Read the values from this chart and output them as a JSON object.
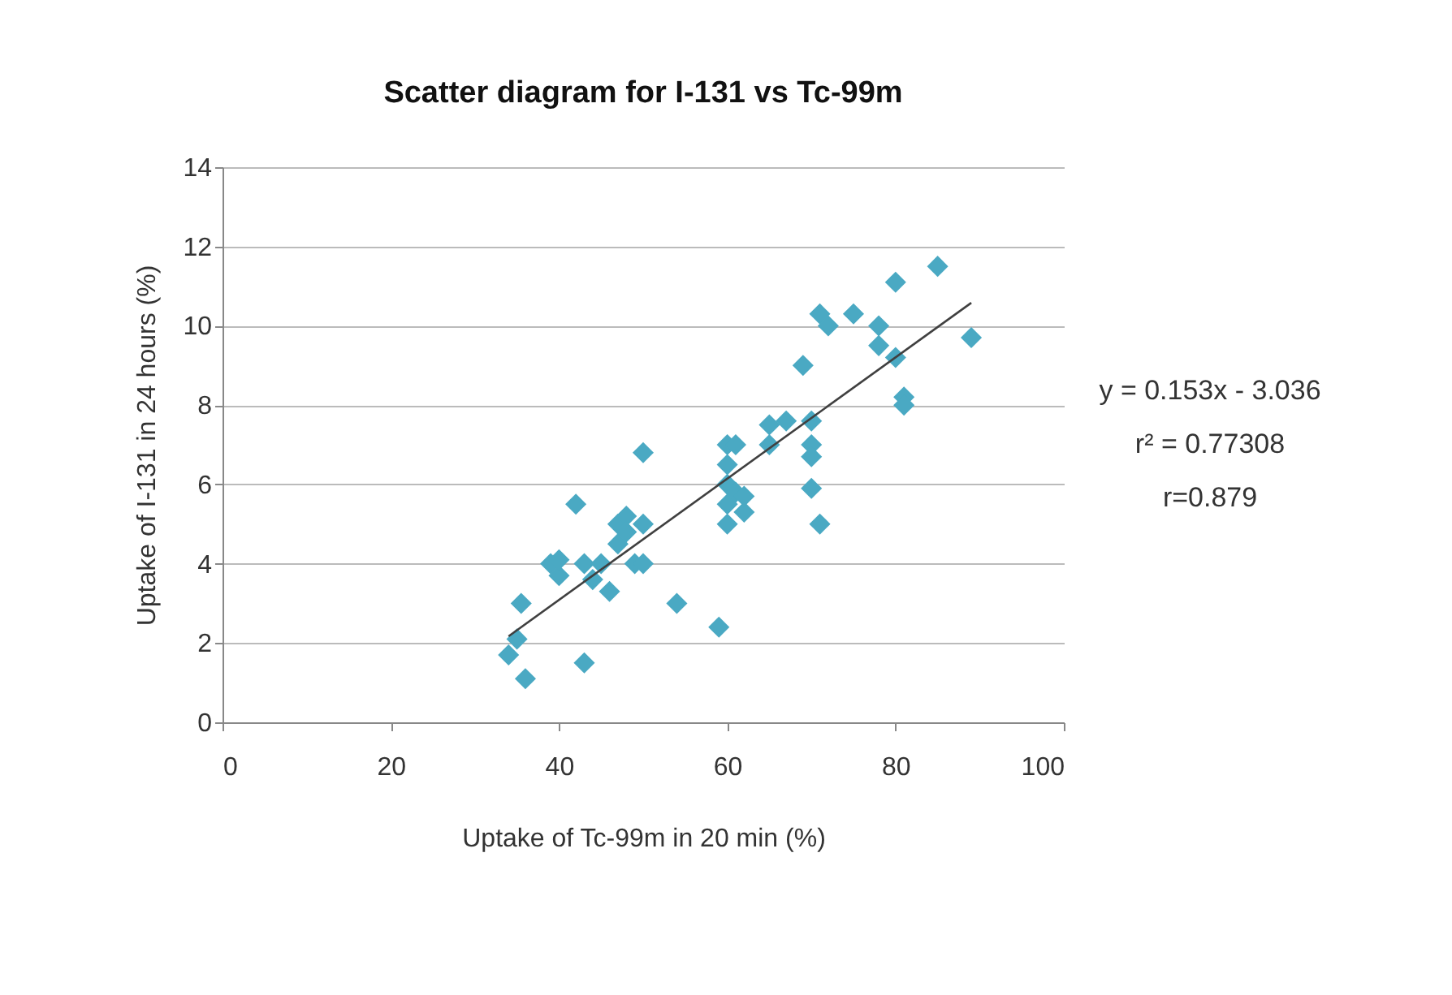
{
  "chart_data": {
    "type": "scatter",
    "title": "Scatter diagram for I-131 vs Tc-99m",
    "xlabel": "Uptake of Tc-99m in 20 min (%)",
    "ylabel": "Uptake of I-131 in 24 hours (%)",
    "xlim": [
      0,
      100
    ],
    "xticks": [
      0,
      20,
      40,
      60,
      80,
      100
    ],
    "ylim": [
      0,
      14
    ],
    "yticks": [
      0,
      2,
      4,
      6,
      8,
      10,
      12,
      14
    ],
    "grid": "y",
    "annotations": [
      "y = 0.153x - 3.036",
      "r² = 0.77308",
      "r=0.879"
    ],
    "series": [
      {
        "marker": "diamond",
        "color": "#4aa9c3",
        "x": [
          34,
          35,
          35.5,
          36,
          39,
          40,
          40,
          42,
          43,
          43,
          44,
          45,
          46,
          47,
          47,
          48,
          48,
          49,
          50,
          50,
          50,
          54,
          59,
          60,
          60,
          60,
          60,
          60,
          61,
          61,
          62,
          62,
          65,
          65,
          67,
          69,
          70,
          70,
          70,
          70,
          71,
          71,
          72,
          75,
          78,
          78,
          80,
          80,
          81,
          81,
          85,
          89
        ],
        "values": [
          1.7,
          2.1,
          3,
          1.1,
          4,
          3.7,
          4.1,
          5.5,
          1.5,
          4,
          3.6,
          4,
          3.3,
          4.5,
          5,
          5.2,
          4.8,
          4,
          5,
          4,
          6.8,
          3,
          2.4,
          5,
          5.5,
          6,
          6.5,
          7,
          5.8,
          7,
          5.3,
          5.7,
          7,
          7.5,
          7.6,
          9,
          7.6,
          7,
          6.7,
          5.9,
          5,
          10.3,
          10,
          10.3,
          10,
          9.5,
          9.2,
          11.1,
          8.2,
          8,
          11.5,
          9.7
        ]
      },
      {
        "type": "line",
        "marker": "none",
        "color": "#404040",
        "x": [
          34,
          89
        ],
        "values": [
          2.17,
          10.58
        ]
      }
    ]
  }
}
